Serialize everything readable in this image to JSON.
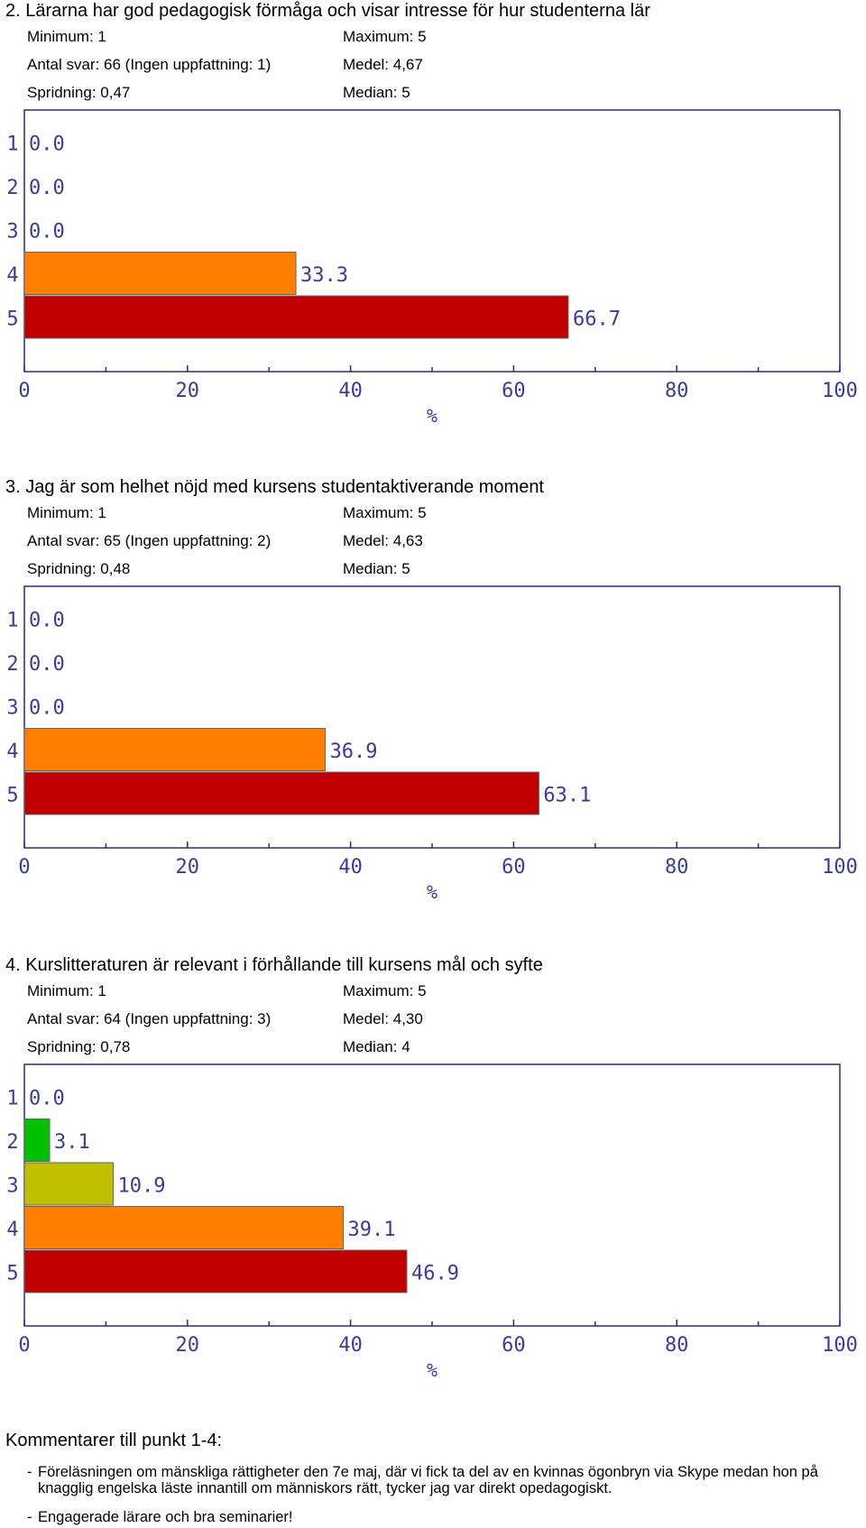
{
  "questions": [
    {
      "title": "2. Lärarna har god pedagogisk förmåga och visar intresse för hur studenterna lär",
      "minimum": "Minimum: 1",
      "maximum": "Maximum: 5",
      "antal": "Antal svar: 66 (Ingen uppfattning: 1)",
      "medel": "Medel: 4,67",
      "spridning": "Spridning: 0,47",
      "median": "Median: 5"
    },
    {
      "title": "3. Jag är som helhet nöjd med kursens studentaktiverande moment",
      "minimum": "Minimum: 1",
      "maximum": "Maximum: 5",
      "antal": "Antal svar: 65 (Ingen uppfattning: 2)",
      "medel": "Medel: 4,63",
      "spridning": "Spridning: 0,48",
      "median": "Median: 5"
    },
    {
      "title": "4. Kurslitteraturen är relevant i förhållande till kursens mål och syfte",
      "minimum": "Minimum: 1",
      "maximum": "Maximum: 5",
      "antal": "Antal svar: 64 (Ingen uppfattning: 3)",
      "medel": "Medel: 4,30",
      "spridning": "Spridning: 0,78",
      "median": "Median: 4"
    }
  ],
  "chart_data": [
    {
      "type": "bar",
      "orientation": "horizontal",
      "categories": [
        "1",
        "2",
        "3",
        "4",
        "5"
      ],
      "values": [
        0.0,
        0.0,
        0.0,
        33.3,
        66.7
      ],
      "data_labels": [
        "0.0",
        "0.0",
        "0.0",
        "33.3",
        "66.7"
      ],
      "xlabel": "%",
      "xlim": [
        0,
        100
      ],
      "xticks": [
        "0",
        "20",
        "40",
        "60",
        "80",
        "100"
      ],
      "grid": false,
      "bar_colors": [
        "#00c000",
        "#00c000",
        "#c0c000",
        "#ff8000",
        "#c00000"
      ]
    },
    {
      "type": "bar",
      "orientation": "horizontal",
      "categories": [
        "1",
        "2",
        "3",
        "4",
        "5"
      ],
      "values": [
        0.0,
        0.0,
        0.0,
        36.9,
        63.1
      ],
      "data_labels": [
        "0.0",
        "0.0",
        "0.0",
        "36.9",
        "63.1"
      ],
      "xlabel": "%",
      "xlim": [
        0,
        100
      ],
      "xticks": [
        "0",
        "20",
        "40",
        "60",
        "80",
        "100"
      ],
      "grid": false,
      "bar_colors": [
        "#00c000",
        "#00c000",
        "#c0c000",
        "#ff8000",
        "#c00000"
      ]
    },
    {
      "type": "bar",
      "orientation": "horizontal",
      "categories": [
        "1",
        "2",
        "3",
        "4",
        "5"
      ],
      "values": [
        0.0,
        3.1,
        10.9,
        39.1,
        46.9
      ],
      "data_labels": [
        "0.0",
        "3.1",
        "10.9",
        "39.1",
        "46.9"
      ],
      "xlabel": "%",
      "xlim": [
        0,
        100
      ],
      "xticks": [
        "0",
        "20",
        "40",
        "60",
        "80",
        "100"
      ],
      "grid": false,
      "bar_colors": [
        "#00c000",
        "#00c000",
        "#c0c000",
        "#ff8000",
        "#c00000"
      ]
    }
  ],
  "comments": {
    "title": "Kommentarer till punkt 1-4:",
    "items": [
      "Föreläsningen om mänskliga rättigheter den 7e maj, där vi fick ta del av en kvinnas ögonbryn via Skype medan hon på knagglig engelska läste innantill om människors rätt, tycker jag var direkt opedagogiskt.",
      "Engagerade lärare och bra seminarier!"
    ],
    "dash": "-"
  },
  "colors": {
    "axis": "#2a2a80",
    "label_text": "#3a3aa0"
  }
}
